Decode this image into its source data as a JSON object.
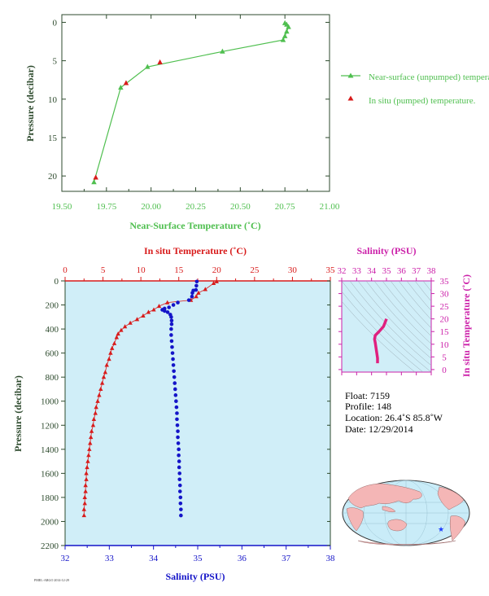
{
  "colors": {
    "near_surface": "#4fbf4f",
    "in_situ_temp": "#d81b1b",
    "salinity": "#1414c8",
    "salinity_title": "#cc22aa",
    "ts_curve": "#e0207f",
    "axis_dark": "#2d4a2d",
    "panel_bg": "#d0eef8",
    "land": "#f4b6b6",
    "ocean": "#c9ecf8",
    "float_marker": "#1e3cff"
  },
  "chart_data": [
    {
      "type": "line",
      "xlabel": "Near-Surface Temperature (˚C)",
      "ylabel": "Pressure (decibar)",
      "xlim": [
        19.5,
        21.0
      ],
      "ylim": [
        22,
        -1
      ],
      "x_ticks": [
        "19.50",
        "19.75",
        "20.00",
        "20.25",
        "20.50",
        "20.75",
        "21.00"
      ],
      "y_ticks": [
        "0",
        "5",
        "10",
        "15",
        "20"
      ],
      "legend_position": "right",
      "series": [
        {
          "name": "Near-surface (unpumped) temperature.",
          "marker": "triangle",
          "points": [
            [
              19.68,
              20.8
            ],
            [
              19.83,
              8.5
            ],
            [
              19.98,
              5.8
            ],
            [
              20.4,
              3.8
            ],
            [
              20.74,
              2.3
            ],
            [
              20.75,
              1.8
            ],
            [
              20.76,
              1.2
            ],
            [
              20.77,
              0.6
            ],
            [
              20.76,
              0.3
            ],
            [
              20.75,
              0.1
            ]
          ]
        },
        {
          "name": "In situ (pumped) temperature.",
          "marker": "triangle",
          "points": [
            [
              19.69,
              20.2
            ],
            [
              19.86,
              7.9
            ],
            [
              20.05,
              5.2
            ]
          ]
        }
      ]
    },
    {
      "type": "scatter",
      "ylabel": "Pressure (decibar)",
      "x_top_label": "In situ Temperature (˚C)",
      "x_bottom_label": "Salinity (PSU)",
      "temp_lim": [
        0,
        35
      ],
      "sal_lim": [
        32,
        38
      ],
      "ylim": [
        2200,
        0
      ],
      "temp_ticks": [
        "0",
        "5",
        "10",
        "15",
        "20",
        "25",
        "30",
        "35"
      ],
      "sal_ticks": [
        "32",
        "33",
        "34",
        "35",
        "36",
        "37",
        "38"
      ],
      "y_ticks": [
        "0",
        "200",
        "400",
        "600",
        "800",
        "1000",
        "1200",
        "1400",
        "1600",
        "1800",
        "2000",
        "2200"
      ],
      "temperature_profile": [
        [
          20.0,
          5
        ],
        [
          19.6,
          20
        ],
        [
          18.5,
          70
        ],
        [
          17.6,
          100
        ],
        [
          17.3,
          130
        ],
        [
          16.6,
          160
        ],
        [
          13.5,
          180
        ],
        [
          12.4,
          210
        ],
        [
          11.7,
          240
        ],
        [
          11.0,
          260
        ],
        [
          10.3,
          290
        ],
        [
          9.5,
          320
        ],
        [
          8.6,
          350
        ],
        [
          7.9,
          380
        ],
        [
          7.4,
          410
        ],
        [
          7.0,
          440
        ],
        [
          6.8,
          470
        ],
        [
          6.5,
          520
        ],
        [
          6.2,
          560
        ],
        [
          6.0,
          600
        ],
        [
          5.8,
          650
        ],
        [
          5.5,
          700
        ],
        [
          5.3,
          760
        ],
        [
          5.1,
          800
        ],
        [
          4.9,
          850
        ],
        [
          4.7,
          900
        ],
        [
          4.5,
          950
        ],
        [
          4.3,
          1000
        ],
        [
          4.1,
          1050
        ],
        [
          4.0,
          1100
        ],
        [
          3.8,
          1150
        ],
        [
          3.7,
          1200
        ],
        [
          3.5,
          1250
        ],
        [
          3.4,
          1300
        ],
        [
          3.3,
          1350
        ],
        [
          3.2,
          1400
        ],
        [
          3.1,
          1450
        ],
        [
          3.0,
          1500
        ],
        [
          2.9,
          1550
        ],
        [
          2.8,
          1600
        ],
        [
          2.8,
          1650
        ],
        [
          2.7,
          1700
        ],
        [
          2.7,
          1750
        ],
        [
          2.6,
          1800
        ],
        [
          2.6,
          1850
        ],
        [
          2.5,
          1900
        ],
        [
          2.5,
          1950
        ]
      ],
      "salinity_profile": [
        [
          34.98,
          5
        ],
        [
          34.97,
          40
        ],
        [
          34.96,
          75
        ],
        [
          34.9,
          80
        ],
        [
          34.88,
          100
        ],
        [
          34.87,
          130
        ],
        [
          34.8,
          160
        ],
        [
          34.55,
          180
        ],
        [
          34.45,
          200
        ],
        [
          34.35,
          220
        ],
        [
          34.25,
          230
        ],
        [
          34.2,
          240
        ],
        [
          34.25,
          250
        ],
        [
          34.32,
          260
        ],
        [
          34.38,
          280
        ],
        [
          34.4,
          300
        ],
        [
          34.41,
          330
        ],
        [
          34.41,
          360
        ],
        [
          34.4,
          400
        ],
        [
          34.4,
          450
        ],
        [
          34.41,
          500
        ],
        [
          34.42,
          550
        ],
        [
          34.43,
          600
        ],
        [
          34.44,
          650
        ],
        [
          34.45,
          700
        ],
        [
          34.46,
          750
        ],
        [
          34.47,
          800
        ],
        [
          34.48,
          850
        ],
        [
          34.49,
          900
        ],
        [
          34.5,
          950
        ],
        [
          34.51,
          1000
        ],
        [
          34.52,
          1050
        ],
        [
          34.53,
          1100
        ],
        [
          34.53,
          1150
        ],
        [
          34.54,
          1200
        ],
        [
          34.55,
          1250
        ],
        [
          34.55,
          1300
        ],
        [
          34.56,
          1350
        ],
        [
          34.57,
          1400
        ],
        [
          34.57,
          1450
        ],
        [
          34.58,
          1500
        ],
        [
          34.58,
          1550
        ],
        [
          34.59,
          1600
        ],
        [
          34.59,
          1650
        ],
        [
          34.6,
          1700
        ],
        [
          34.6,
          1750
        ],
        [
          34.61,
          1800
        ],
        [
          34.61,
          1850
        ],
        [
          34.62,
          1900
        ],
        [
          34.62,
          1950
        ]
      ]
    },
    {
      "type": "line",
      "title": "Salinity (PSU)",
      "y_label": "In situ Temperature (˚C)",
      "sal_lim": [
        32,
        38
      ],
      "temp_lim": [
        -1,
        35
      ],
      "sal_ticks": [
        "32",
        "33",
        "34",
        "35",
        "36",
        "37",
        "38"
      ],
      "temp_ticks": [
        "0",
        "5",
        "10",
        "15",
        "20",
        "25",
        "30",
        "35"
      ],
      "ts_points": [
        [
          34.4,
          2.5
        ],
        [
          34.4,
          4.5
        ],
        [
          34.35,
          6.5
        ],
        [
          34.3,
          8.5
        ],
        [
          34.25,
          10.5
        ],
        [
          34.2,
          12
        ],
        [
          34.25,
          13.5
        ],
        [
          34.5,
          15
        ],
        [
          34.8,
          17
        ],
        [
          34.9,
          18.5
        ],
        [
          35.0,
          20
        ]
      ]
    }
  ],
  "float_info": {
    "float": "Float:  7159",
    "profile": "Profile:  148",
    "location": "Location:  26.4˚S  85.8˚W",
    "date": "Date:  12/29/2014"
  },
  "footer_code": "PMEL-ARGO 2014-12-29"
}
